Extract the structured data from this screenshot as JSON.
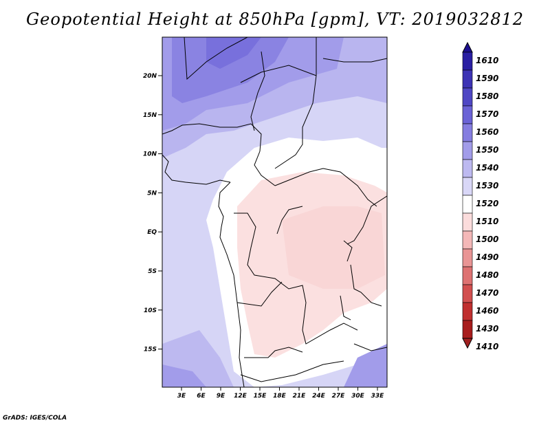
{
  "title": "Geopotential Height at 850hPa [gpm], VT: 2019032812",
  "credit": "GrADS: IGES/COLA",
  "map": {
    "lat_labels": [
      "20N",
      "15N",
      "10N",
      "5N",
      "EQ",
      "5S",
      "10S",
      "15S"
    ],
    "lon_labels": [
      "3E",
      "6E",
      "9E",
      "12E",
      "15E",
      "18E",
      "21E",
      "24E",
      "27E",
      "30E",
      "33E"
    ]
  },
  "colorbar": {
    "levels": [
      "1610",
      "1590",
      "1580",
      "1570",
      "1560",
      "1550",
      "1540",
      "1530",
      "1520",
      "1510",
      "1500",
      "1490",
      "1480",
      "1470",
      "1460",
      "1430",
      "1410"
    ],
    "colors": [
      "#1c0f8f",
      "#2a1fa3",
      "#3d33b5",
      "#4f47c4",
      "#6b63d6",
      "#857de0",
      "#a29ce9",
      "#bdb9f0",
      "#d9d7f7",
      "#ffffff",
      "#fbdcdc",
      "#f4b8b8",
      "#e99595",
      "#de7272",
      "#d24f4f",
      "#c02f2f",
      "#a81d1d",
      "#a02020"
    ]
  },
  "colors": {
    "land_border": "#000000"
  }
}
